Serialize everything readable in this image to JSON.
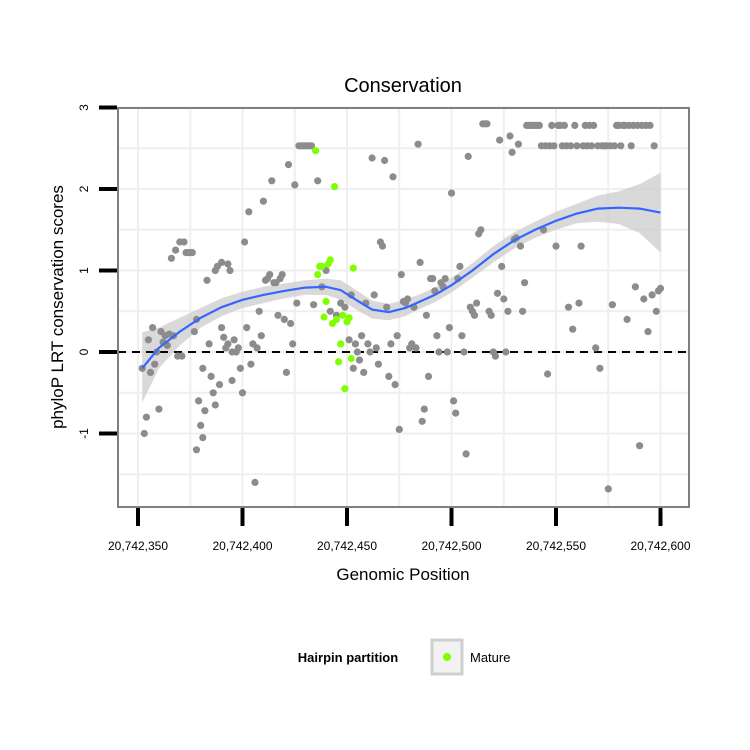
{
  "chart_data": {
    "type": "scatter",
    "title": "Conservation",
    "xlabel": "Genomic Position",
    "ylabel": "phyloP LRT conservation scores",
    "xlim": [
      20742345,
      20742605
    ],
    "ylim": [
      -1.9,
      3.1
    ],
    "x_ticks": [
      20742350,
      20742400,
      20742450,
      20742500,
      20742550,
      20742600
    ],
    "x_tick_labels": [
      "20,742,350",
      "20,742,400",
      "20,742,450",
      "20,742,500",
      "20,742,550",
      "20,742,600"
    ],
    "y_ticks": [
      -1,
      0,
      1,
      2,
      3
    ],
    "y_tick_labels": [
      "-1",
      "0",
      "1",
      "2",
      "3"
    ],
    "grid": true,
    "reference_line": {
      "y": 0,
      "style": "dashed"
    },
    "legend": {
      "title": "Hairpin partition",
      "placement": "bottom",
      "entries": [
        "Mature"
      ]
    },
    "colors": {
      "background": "#ffffff",
      "grid": "#efefef",
      "frame": "#7f7f7f",
      "points": "#8c8c8c",
      "mature": "#7fff00",
      "smooth": "#3366ff",
      "band": "#cccccc"
    },
    "series": [
      {
        "role": "other",
        "points": [
          [
            20742352,
            -0.2
          ],
          [
            20742353,
            -1.0
          ],
          [
            20742354,
            -0.8
          ],
          [
            20742355,
            0.15
          ],
          [
            20742356,
            -0.25
          ],
          [
            20742357,
            0.3
          ],
          [
            20742358,
            -0.15
          ],
          [
            20742359,
            0.0
          ],
          [
            20742360,
            -0.7
          ],
          [
            20742361,
            0.25
          ],
          [
            20742362,
            0.12
          ],
          [
            20742363,
            0.2
          ],
          [
            20742364,
            0.08
          ],
          [
            20742365,
            0.22
          ],
          [
            20742366,
            1.15
          ],
          [
            20742367,
            0.2
          ],
          [
            20742368,
            1.25
          ],
          [
            20742369,
            -0.05
          ],
          [
            20742370,
            1.35
          ],
          [
            20742371,
            -0.05
          ],
          [
            20742372,
            1.35
          ],
          [
            20742373,
            1.22
          ],
          [
            20742374,
            1.22
          ],
          [
            20742375,
            1.22
          ],
          [
            20742376,
            1.22
          ],
          [
            20742377,
            0.25
          ],
          [
            20742378,
            -1.2
          ],
          [
            20742378,
            0.4
          ],
          [
            20742379,
            -0.6
          ],
          [
            20742380,
            -0.9
          ],
          [
            20742381,
            -1.05
          ],
          [
            20742381,
            -0.2
          ],
          [
            20742382,
            -0.72
          ],
          [
            20742383,
            0.88
          ],
          [
            20742384,
            0.1
          ],
          [
            20742385,
            -0.3
          ],
          [
            20742386,
            -0.5
          ],
          [
            20742387,
            -0.65
          ],
          [
            20742387,
            1.0
          ],
          [
            20742388,
            1.05
          ],
          [
            20742389,
            -0.4
          ],
          [
            20742390,
            0.3
          ],
          [
            20742390,
            1.1
          ],
          [
            20742391,
            0.18
          ],
          [
            20742392,
            0.05
          ],
          [
            20742393,
            1.08
          ],
          [
            20742393,
            0.1
          ],
          [
            20742394,
            1.0
          ],
          [
            20742395,
            0.0
          ],
          [
            20742395,
            -0.35
          ],
          [
            20742396,
            0.15
          ],
          [
            20742397,
            0.0
          ],
          [
            20742398,
            0.05
          ],
          [
            20742399,
            -0.2
          ],
          [
            20742400,
            -0.5
          ],
          [
            20742401,
            1.35
          ],
          [
            20742402,
            0.3
          ],
          [
            20742403,
            1.72
          ],
          [
            20742404,
            -0.15
          ],
          [
            20742405,
            0.1
          ],
          [
            20742406,
            -1.6
          ],
          [
            20742407,
            0.05
          ],
          [
            20742408,
            0.5
          ],
          [
            20742409,
            0.2
          ],
          [
            20742410,
            1.85
          ],
          [
            20742411,
            0.88
          ],
          [
            20742412,
            0.9
          ],
          [
            20742413,
            0.95
          ],
          [
            20742414,
            2.1
          ],
          [
            20742415,
            0.85
          ],
          [
            20742416,
            0.85
          ],
          [
            20742417,
            0.45
          ],
          [
            20742418,
            0.9
          ],
          [
            20742419,
            0.95
          ],
          [
            20742420,
            0.4
          ],
          [
            20742421,
            -0.25
          ],
          [
            20742422,
            2.3
          ],
          [
            20742423,
            0.35
          ],
          [
            20742424,
            0.1
          ],
          [
            20742425,
            2.05
          ],
          [
            20742426,
            0.6
          ],
          [
            20742427,
            2.53
          ],
          [
            20742428,
            2.53
          ],
          [
            20742429,
            2.53
          ],
          [
            20742430,
            2.53
          ],
          [
            20742431,
            2.53
          ],
          [
            20742432,
            2.53
          ],
          [
            20742433,
            2.53
          ],
          [
            20742434,
            0.58
          ],
          [
            20742436,
            2.1
          ],
          [
            20742438,
            0.8
          ],
          [
            20742440,
            1.0
          ],
          [
            20742442,
            0.5
          ],
          [
            20742445,
            0.45
          ],
          [
            20742447,
            0.6
          ],
          [
            20742449,
            0.55
          ],
          [
            20742451,
            0.15
          ],
          [
            20742452,
            0.7
          ],
          [
            20742453,
            -0.2
          ],
          [
            20742454,
            0.1
          ],
          [
            20742455,
            0.0
          ],
          [
            20742456,
            -0.1
          ],
          [
            20742457,
            0.2
          ],
          [
            20742458,
            -0.25
          ],
          [
            20742459,
            0.6
          ],
          [
            20742460,
            0.1
          ],
          [
            20742461,
            0.0
          ],
          [
            20742462,
            2.38
          ],
          [
            20742463,
            0.7
          ],
          [
            20742464,
            0.05
          ],
          [
            20742465,
            -0.15
          ],
          [
            20742466,
            1.35
          ],
          [
            20742467,
            1.3
          ],
          [
            20742468,
            2.35
          ],
          [
            20742469,
            0.55
          ],
          [
            20742470,
            -0.3
          ],
          [
            20742471,
            0.1
          ],
          [
            20742472,
            2.15
          ],
          [
            20742473,
            -0.4
          ],
          [
            20742474,
            0.2
          ],
          [
            20742475,
            -0.95
          ],
          [
            20742476,
            0.95
          ],
          [
            20742477,
            0.62
          ],
          [
            20742478,
            0.6
          ],
          [
            20742479,
            0.65
          ],
          [
            20742480,
            0.05
          ],
          [
            20742481,
            0.1
          ],
          [
            20742482,
            0.55
          ],
          [
            20742483,
            0.05
          ],
          [
            20742484,
            2.55
          ],
          [
            20742485,
            1.1
          ],
          [
            20742486,
            -0.85
          ],
          [
            20742487,
            -0.7
          ],
          [
            20742488,
            0.45
          ],
          [
            20742489,
            -0.3
          ],
          [
            20742490,
            0.9
          ],
          [
            20742491,
            0.9
          ],
          [
            20742492,
            0.75
          ],
          [
            20742493,
            0.2
          ],
          [
            20742494,
            0.0
          ],
          [
            20742495,
            0.85
          ],
          [
            20742496,
            0.8
          ],
          [
            20742497,
            0.9
          ],
          [
            20742498,
            0.0
          ],
          [
            20742499,
            0.3
          ],
          [
            20742500,
            1.95
          ],
          [
            20742501,
            -0.6
          ],
          [
            20742502,
            -0.75
          ],
          [
            20742503,
            0.9
          ],
          [
            20742504,
            1.05
          ],
          [
            20742505,
            0.2
          ],
          [
            20742506,
            0.0
          ],
          [
            20742507,
            -1.25
          ],
          [
            20742508,
            2.4
          ],
          [
            20742509,
            0.55
          ],
          [
            20742510,
            0.5
          ],
          [
            20742511,
            0.45
          ],
          [
            20742512,
            0.6
          ],
          [
            20742513,
            1.45
          ],
          [
            20742514,
            1.5
          ],
          [
            20742515,
            2.8
          ],
          [
            20742516,
            2.8
          ],
          [
            20742517,
            2.8
          ],
          [
            20742518,
            0.5
          ],
          [
            20742519,
            0.45
          ],
          [
            20742520,
            0.0
          ],
          [
            20742521,
            -0.05
          ],
          [
            20742522,
            0.72
          ],
          [
            20742523,
            2.6
          ],
          [
            20742524,
            1.05
          ],
          [
            20742525,
            0.65
          ],
          [
            20742526,
            0.0
          ],
          [
            20742527,
            0.5
          ],
          [
            20742528,
            2.65
          ],
          [
            20742529,
            2.45
          ],
          [
            20742530,
            1.38
          ],
          [
            20742531,
            1.4
          ],
          [
            20742532,
            2.55
          ],
          [
            20742533,
            1.3
          ],
          [
            20742534,
            0.5
          ],
          [
            20742535,
            0.85
          ],
          [
            20742536,
            2.78
          ],
          [
            20742537,
            2.78
          ],
          [
            20742538,
            2.78
          ],
          [
            20742539,
            2.78
          ],
          [
            20742540,
            2.78
          ],
          [
            20742541,
            2.78
          ],
          [
            20742542,
            2.78
          ],
          [
            20742543,
            2.53
          ],
          [
            20742544,
            1.5
          ],
          [
            20742545,
            2.53
          ],
          [
            20742546,
            -0.27
          ],
          [
            20742547,
            2.53
          ],
          [
            20742548,
            2.78
          ],
          [
            20742549,
            2.53
          ],
          [
            20742550,
            1.3
          ],
          [
            20742551,
            2.78
          ],
          [
            20742552,
            2.78
          ],
          [
            20742553,
            2.53
          ],
          [
            20742554,
            2.78
          ],
          [
            20742555,
            2.53
          ],
          [
            20742556,
            0.55
          ],
          [
            20742557,
            2.53
          ],
          [
            20742558,
            0.28
          ],
          [
            20742559,
            2.78
          ],
          [
            20742560,
            2.53
          ],
          [
            20742561,
            0.6
          ],
          [
            20742562,
            1.3
          ],
          [
            20742563,
            2.53
          ],
          [
            20742564,
            2.78
          ],
          [
            20742565,
            2.53
          ],
          [
            20742566,
            2.78
          ],
          [
            20742567,
            2.53
          ],
          [
            20742568,
            2.78
          ],
          [
            20742569,
            0.05
          ],
          [
            20742570,
            2.53
          ],
          [
            20742571,
            -0.2
          ],
          [
            20742572,
            2.53
          ],
          [
            20742573,
            2.53
          ],
          [
            20742574,
            2.53
          ],
          [
            20742575,
            -1.68
          ],
          [
            20742576,
            2.53
          ],
          [
            20742577,
            0.58
          ],
          [
            20742578,
            2.53
          ],
          [
            20742579,
            2.78
          ],
          [
            20742580,
            2.78
          ],
          [
            20742581,
            2.53
          ],
          [
            20742582,
            2.78
          ],
          [
            20742583,
            2.78
          ],
          [
            20742584,
            0.4
          ],
          [
            20742585,
            2.78
          ],
          [
            20742586,
            2.53
          ],
          [
            20742587,
            2.78
          ],
          [
            20742588,
            0.8
          ],
          [
            20742589,
            2.78
          ],
          [
            20742590,
            -1.15
          ],
          [
            20742591,
            2.78
          ],
          [
            20742592,
            0.65
          ],
          [
            20742593,
            2.78
          ],
          [
            20742594,
            0.25
          ],
          [
            20742595,
            2.78
          ],
          [
            20742596,
            0.7
          ],
          [
            20742597,
            2.53
          ],
          [
            20742598,
            0.5
          ],
          [
            20742599,
            0.75
          ],
          [
            20742600,
            0.78
          ]
        ]
      },
      {
        "role": "mature",
        "points": [
          [
            20742435,
            2.47
          ],
          [
            20742436,
            0.95
          ],
          [
            20742437,
            1.05
          ],
          [
            20742438,
            1.05
          ],
          [
            20742439,
            0.43
          ],
          [
            20742440,
            0.62
          ],
          [
            20742441,
            1.08
          ],
          [
            20742442,
            1.13
          ],
          [
            20742443,
            0.35
          ],
          [
            20742444,
            2.03
          ],
          [
            20742445,
            0.4
          ],
          [
            20742446,
            -0.12
          ],
          [
            20742447,
            0.1
          ],
          [
            20742448,
            0.45
          ],
          [
            20742449,
            -0.45
          ],
          [
            20742450,
            0.37
          ],
          [
            20742451,
            0.42
          ],
          [
            20742452,
            -0.08
          ],
          [
            20742453,
            1.03
          ]
        ]
      }
    ],
    "smooth": {
      "x": [
        20742352,
        20742360,
        20742370,
        20742380,
        20742390,
        20742400,
        20742410,
        20742420,
        20742430,
        20742440,
        20742447,
        20742455,
        20742462,
        20742470,
        20742478,
        20742485,
        20742492,
        20742500,
        20742510,
        20742520,
        20742530,
        20742540,
        20742550,
        20742560,
        20742570,
        20742580,
        20742590,
        20742600
      ],
      "y": [
        -0.2,
        0.05,
        0.25,
        0.42,
        0.55,
        0.64,
        0.7,
        0.75,
        0.79,
        0.8,
        0.76,
        0.63,
        0.52,
        0.49,
        0.54,
        0.62,
        0.7,
        0.82,
        1.0,
        1.2,
        1.37,
        1.5,
        1.61,
        1.7,
        1.76,
        1.77,
        1.76,
        1.71
      ],
      "lower": [
        -0.62,
        -0.2,
        0.08,
        0.3,
        0.44,
        0.54,
        0.6,
        0.66,
        0.7,
        0.7,
        0.64,
        0.51,
        0.41,
        0.39,
        0.44,
        0.53,
        0.61,
        0.73,
        0.91,
        1.1,
        1.27,
        1.4,
        1.5,
        1.58,
        1.6,
        1.57,
        1.46,
        1.22
      ],
      "upper": [
        0.24,
        0.3,
        0.42,
        0.54,
        0.66,
        0.74,
        0.8,
        0.84,
        0.88,
        0.9,
        0.88,
        0.75,
        0.63,
        0.59,
        0.64,
        0.71,
        0.79,
        0.91,
        1.09,
        1.3,
        1.47,
        1.6,
        1.72,
        1.82,
        1.92,
        1.97,
        2.06,
        2.2
      ]
    }
  }
}
